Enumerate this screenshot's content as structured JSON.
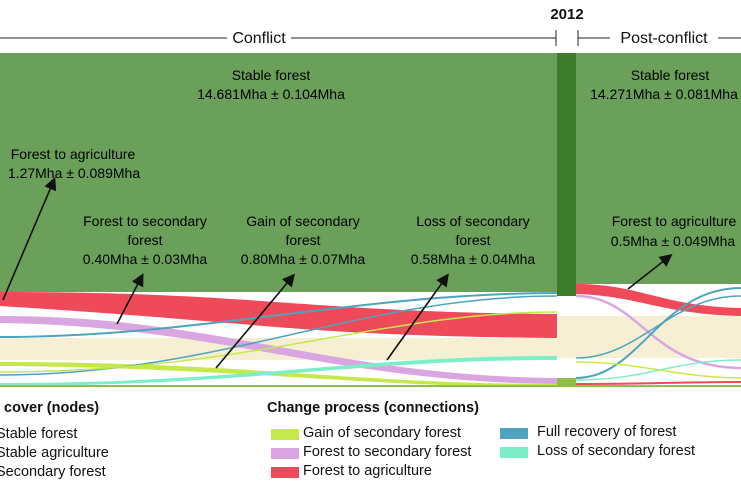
{
  "header": {
    "year": "2012",
    "left_period": "Conflict",
    "right_period": "Post-conflict"
  },
  "annotations": {
    "stable_forest_left": {
      "title": "Stable forest",
      "value": "14.681Mha ± 0.104Mha"
    },
    "stable_forest_right": {
      "title": "Stable forest",
      "value": "14.271Mha ± 0.081Mha"
    },
    "forest_to_agriculture_left": {
      "title": "Forest to agriculture",
      "value": "1.27Mha ± 0.089Mha"
    },
    "forest_to_secondary_left": {
      "line1": "Forest to secondary",
      "line2": "forest",
      "value": "0.40Mha ± 0.03Mha"
    },
    "gain_secondary_left": {
      "line1": "Gain of secondary",
      "line2": "forest",
      "value": "0.80Mha ± 0.07Mha"
    },
    "loss_secondary_left": {
      "line1": "Loss of secondary",
      "line2": "forest",
      "value": "0.58Mha ± 0.04Mha"
    },
    "forest_to_agriculture_right": {
      "title": "Forest to agriculture",
      "value": "0.5Mha ± 0.049Mha"
    }
  },
  "legend_nodes": {
    "title": "l cover (nodes)",
    "items": [
      {
        "label": "Stable forest"
      },
      {
        "label": "Stable agriculture"
      },
      {
        "label": "Secondary forest"
      }
    ]
  },
  "legend_connections": {
    "title": "Change process (connections)",
    "items": [
      {
        "label": "Gain of secondary forest",
        "color": "#c5e94c"
      },
      {
        "label": "Forest to secondary forest",
        "color": "#d9a6e2"
      },
      {
        "label": "Forest to agriculture",
        "color": "#ef4a5a"
      },
      {
        "label": "Full recovery of forest",
        "color": "#4fa3bd"
      },
      {
        "label": "Loss of secondary forest",
        "color": "#7cefc8"
      }
    ]
  },
  "colors": {
    "stable_forest": "#6aa05a",
    "node_forest": "#3e7d2c",
    "stable_agriculture": "#f6efd3",
    "secondary_forest": "#8fbf45"
  }
}
